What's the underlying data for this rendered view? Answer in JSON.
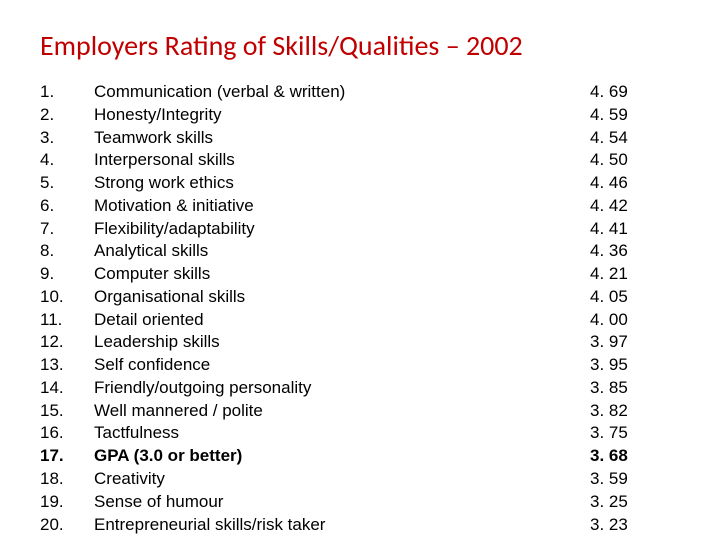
{
  "title": "Employers Rating of Skills/Qualities – 2002",
  "title_color": "#c00000",
  "text_color": "#000000",
  "background_color": "#ffffff",
  "title_fontsize": 28,
  "body_fontsize": 17,
  "columns": [
    "rank",
    "skill",
    "score"
  ],
  "items": [
    {
      "rank": "1.",
      "skill": "Communication (verbal & written)",
      "score": "4. 69",
      "bold": false
    },
    {
      "rank": "2.",
      "skill": "Honesty/Integrity",
      "score": "4. 59",
      "bold": false
    },
    {
      "rank": "3.",
      "skill": "Teamwork skills",
      "score": "4. 54",
      "bold": false
    },
    {
      "rank": "4.",
      "skill": "Interpersonal skills",
      "score": "4. 50",
      "bold": false
    },
    {
      "rank": "5.",
      "skill": "Strong work ethics",
      "score": "4. 46",
      "bold": false
    },
    {
      "rank": "6.",
      "skill": "Motivation & initiative",
      "score": "4. 42",
      "bold": false
    },
    {
      "rank": "7.",
      "skill": "Flexibility/adaptability",
      "score": "4. 41",
      "bold": false
    },
    {
      "rank": "8.",
      "skill": "Analytical skills",
      "score": "4. 36",
      "bold": false
    },
    {
      "rank": "9.",
      "skill": "Computer skills",
      "score": "4. 21",
      "bold": false
    },
    {
      "rank": "10.",
      "skill": "Organisational skills",
      "score": "4. 05",
      "bold": false
    },
    {
      "rank": "11.",
      "skill": "Detail oriented",
      "score": "4. 00",
      "bold": false
    },
    {
      "rank": "12.",
      "skill": "Leadership skills",
      "score": "3. 97",
      "bold": false
    },
    {
      "rank": "13.",
      "skill": "Self confidence",
      "score": "3. 95",
      "bold": false
    },
    {
      "rank": "14.",
      "skill": "Friendly/outgoing personality",
      "score": "3. 85",
      "bold": false
    },
    {
      "rank": "15.",
      "skill": "Well mannered / polite",
      "score": "3. 82",
      "bold": false
    },
    {
      "rank": "16.",
      "skill": "Tactfulness",
      "score": "3. 75",
      "bold": false
    },
    {
      "rank": "17.",
      "skill": "GPA (3.0 or better)",
      "score": "3. 68",
      "bold": true
    },
    {
      "rank": "18.",
      "skill": "Creativity",
      "score": "3. 59",
      "bold": false
    },
    {
      "rank": "19.",
      "skill": "Sense of humour",
      "score": "3. 25",
      "bold": false
    },
    {
      "rank": "20.",
      "skill": "Entrepreneurial skills/risk taker",
      "score": "3. 23",
      "bold": false
    }
  ]
}
